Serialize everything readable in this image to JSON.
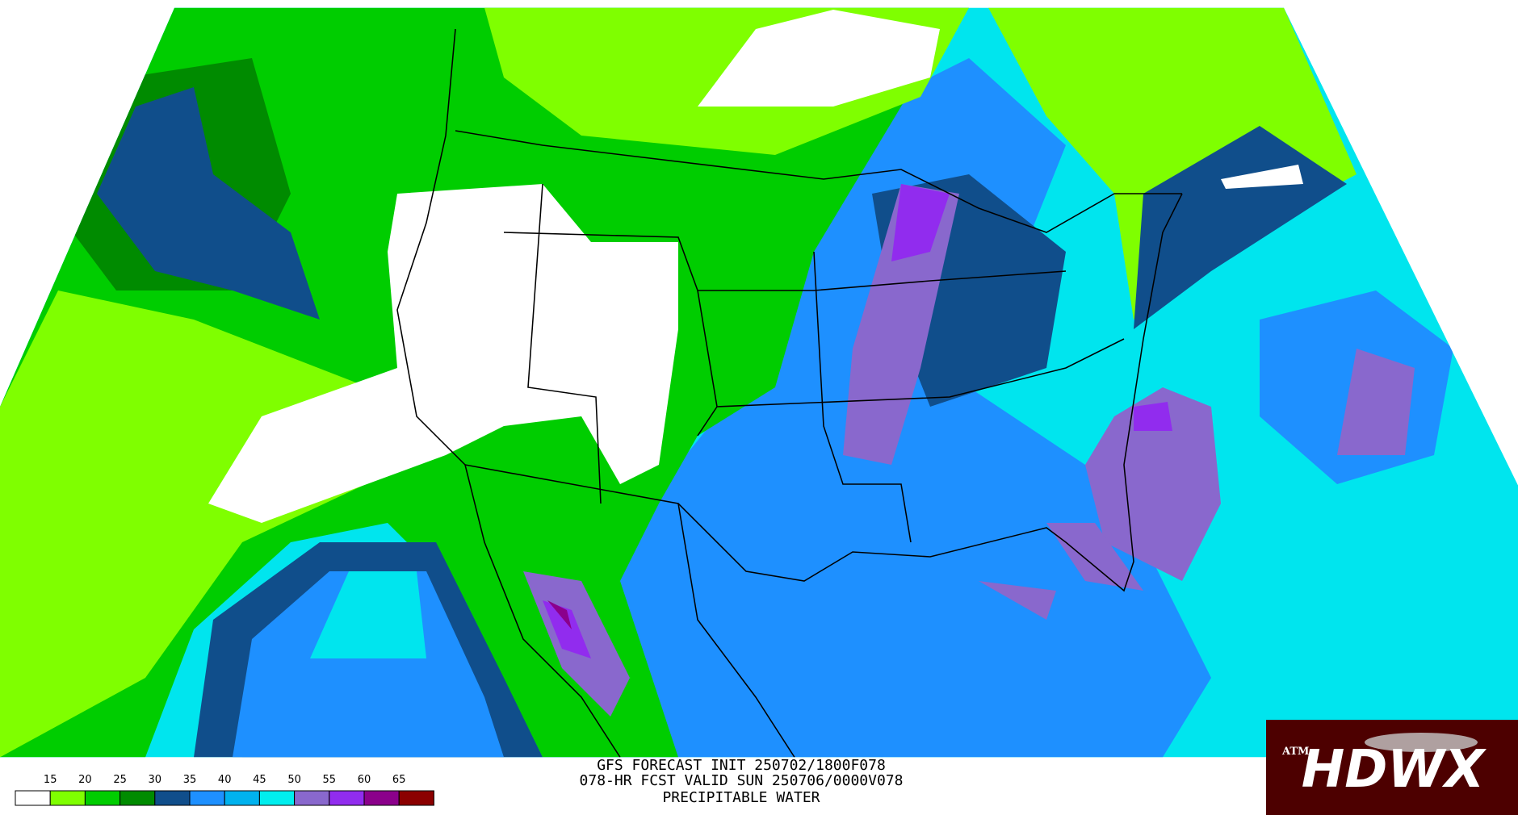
{
  "header": {
    "lines": [
      "GFS FORECAST INIT 250702/1800F078",
      "078-HR FCST VALID SUN 250706/0000V078",
      "PRECIPITABLE WATER"
    ]
  },
  "legend": {
    "labels": [
      "15",
      "20",
      "25",
      "30",
      "35",
      "40",
      "45",
      "50",
      "55",
      "60",
      "65"
    ],
    "colors": [
      "#ffffff",
      "#7fff00",
      "#00cd00",
      "#008b00",
      "#104e8b",
      "#1e90ff",
      "#00b2ee",
      "#00eeee",
      "#8968cd",
      "#912cee",
      "#8b008b",
      "#8b0000"
    ]
  },
  "logo": {
    "text": "HDWX",
    "mark": "ATM"
  }
}
